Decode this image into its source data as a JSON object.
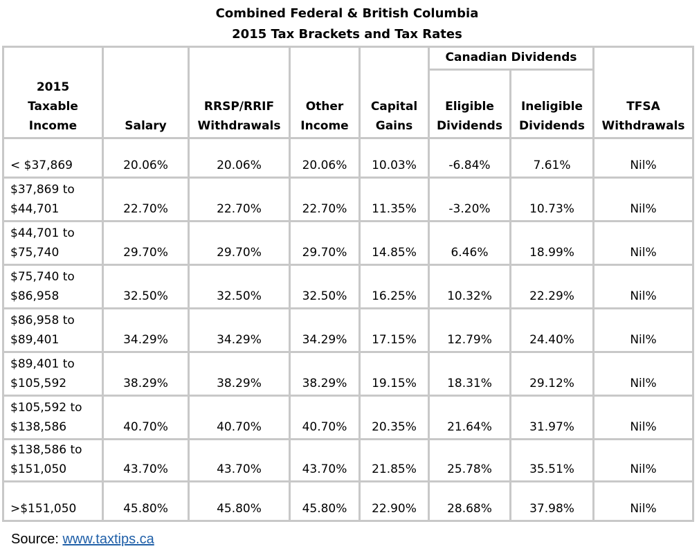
{
  "title": {
    "line1": "Combined Federal & British Columbia",
    "line2": "2015 Tax Brackets and Tax Rates"
  },
  "headers": {
    "group": "Canadian Dividends",
    "income": [
      "2015",
      "Taxable",
      "Income"
    ],
    "salary": "Salary",
    "rrsp": [
      "RRSP/RRIF",
      "Withdrawals"
    ],
    "other": [
      "Other",
      "Income"
    ],
    "capital": [
      "Capital",
      "Gains"
    ],
    "eligible": [
      "Eligible",
      "Dividends"
    ],
    "ineligible": [
      "Ineligible",
      "Dividends"
    ],
    "tfsa": [
      "TFSA",
      "Withdrawals"
    ]
  },
  "rows": [
    {
      "income": [
        "< $37,869"
      ],
      "salary": "20.06%",
      "rrsp": "20.06%",
      "other": "20.06%",
      "capital": "10.03%",
      "eligible": "-6.84%",
      "ineligible": "7.61%",
      "tfsa": "Nil%"
    },
    {
      "income": [
        "$37,869 to",
        "$44,701"
      ],
      "salary": "22.70%",
      "rrsp": "22.70%",
      "other": "22.70%",
      "capital": "11.35%",
      "eligible": "-3.20%",
      "ineligible": "10.73%",
      "tfsa": "Nil%"
    },
    {
      "income": [
        "$44,701 to",
        "$75,740"
      ],
      "salary": "29.70%",
      "rrsp": "29.70%",
      "other": "29.70%",
      "capital": "14.85%",
      "eligible": "6.46%",
      "ineligible": "18.99%",
      "tfsa": "Nil%"
    },
    {
      "income": [
        "$75,740 to",
        "$86,958"
      ],
      "salary": "32.50%",
      "rrsp": "32.50%",
      "other": "32.50%",
      "capital": "16.25%",
      "eligible": "10.32%",
      "ineligible": "22.29%",
      "tfsa": "Nil%"
    },
    {
      "income": [
        "$86,958 to",
        "$89,401"
      ],
      "salary": "34.29%",
      "rrsp": "34.29%",
      "other": "34.29%",
      "capital": "17.15%",
      "eligible": "12.79%",
      "ineligible": "24.40%",
      "tfsa": "Nil%"
    },
    {
      "income": [
        "$89,401 to",
        "$105,592"
      ],
      "salary": "38.29%",
      "rrsp": "38.29%",
      "other": "38.29%",
      "capital": "19.15%",
      "eligible": "18.31%",
      "ineligible": "29.12%",
      "tfsa": "Nil%"
    },
    {
      "income": [
        "$105,592 to",
        "$138,586"
      ],
      "salary": "40.70%",
      "rrsp": "40.70%",
      "other": "40.70%",
      "capital": "20.35%",
      "eligible": "21.64%",
      "ineligible": "31.97%",
      "tfsa": "Nil%"
    },
    {
      "income": [
        "$138,586 to",
        "$151,050"
      ],
      "salary": "43.70%",
      "rrsp": "43.70%",
      "other": "43.70%",
      "capital": "21.85%",
      "eligible": "25.78%",
      "ineligible": "35.51%",
      "tfsa": "Nil%"
    },
    {
      "income": [
        ">$151,050"
      ],
      "salary": "45.80%",
      "rrsp": "45.80%",
      "other": "45.80%",
      "capital": "22.90%",
      "eligible": "28.68%",
      "ineligible": "37.98%",
      "tfsa": "Nil%"
    }
  ],
  "source": {
    "label": "Source: ",
    "link_text": "www.taxtips.ca"
  }
}
